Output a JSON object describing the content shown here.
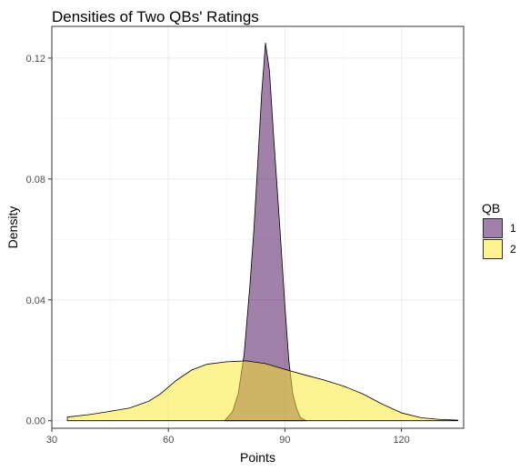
{
  "chart_data": {
    "type": "area",
    "title": "Densities of Two QBs' Ratings",
    "xlabel": "Points",
    "ylabel": "Density",
    "xlim": [
      30,
      136
    ],
    "ylim": [
      -0.0025,
      0.1305
    ],
    "x_ticks": [
      30,
      60,
      90,
      120
    ],
    "x_tick_labels": [
      "30",
      "60",
      "90",
      "120"
    ],
    "y_ticks": [
      0.0,
      0.04,
      0.08,
      0.12
    ],
    "y_tick_labels": [
      "0.00",
      "0.04",
      "0.08",
      "0.12"
    ],
    "grid": true,
    "legend": {
      "title": "QB",
      "position": "right"
    },
    "series": [
      {
        "name": "1",
        "color": "#440154",
        "opacity": 0.5,
        "x": [
          74.5,
          76.5,
          78,
          79.5,
          81,
          82,
          83,
          84,
          85,
          86,
          87,
          88,
          89,
          90,
          91,
          92,
          93,
          94,
          95.5
        ],
        "y": [
          0.0,
          0.003,
          0.009,
          0.022,
          0.045,
          0.063,
          0.085,
          0.108,
          0.125,
          0.116,
          0.096,
          0.077,
          0.058,
          0.038,
          0.02,
          0.009,
          0.004,
          0.001,
          0.0
        ]
      },
      {
        "name": "2",
        "color": "#FDE725",
        "opacity": 0.5,
        "x": [
          34,
          40,
          45,
          50,
          55,
          58,
          62,
          66,
          70,
          75,
          80,
          85,
          90,
          95,
          100,
          105,
          110,
          115,
          120,
          125,
          130,
          134.5
        ],
        "y": [
          0.0012,
          0.0021,
          0.0031,
          0.0042,
          0.0065,
          0.0089,
          0.0133,
          0.0168,
          0.0187,
          0.0195,
          0.0198,
          0.0189,
          0.017,
          0.0152,
          0.0135,
          0.0115,
          0.0089,
          0.0055,
          0.0026,
          0.001,
          0.0004,
          0.0002
        ]
      }
    ]
  }
}
